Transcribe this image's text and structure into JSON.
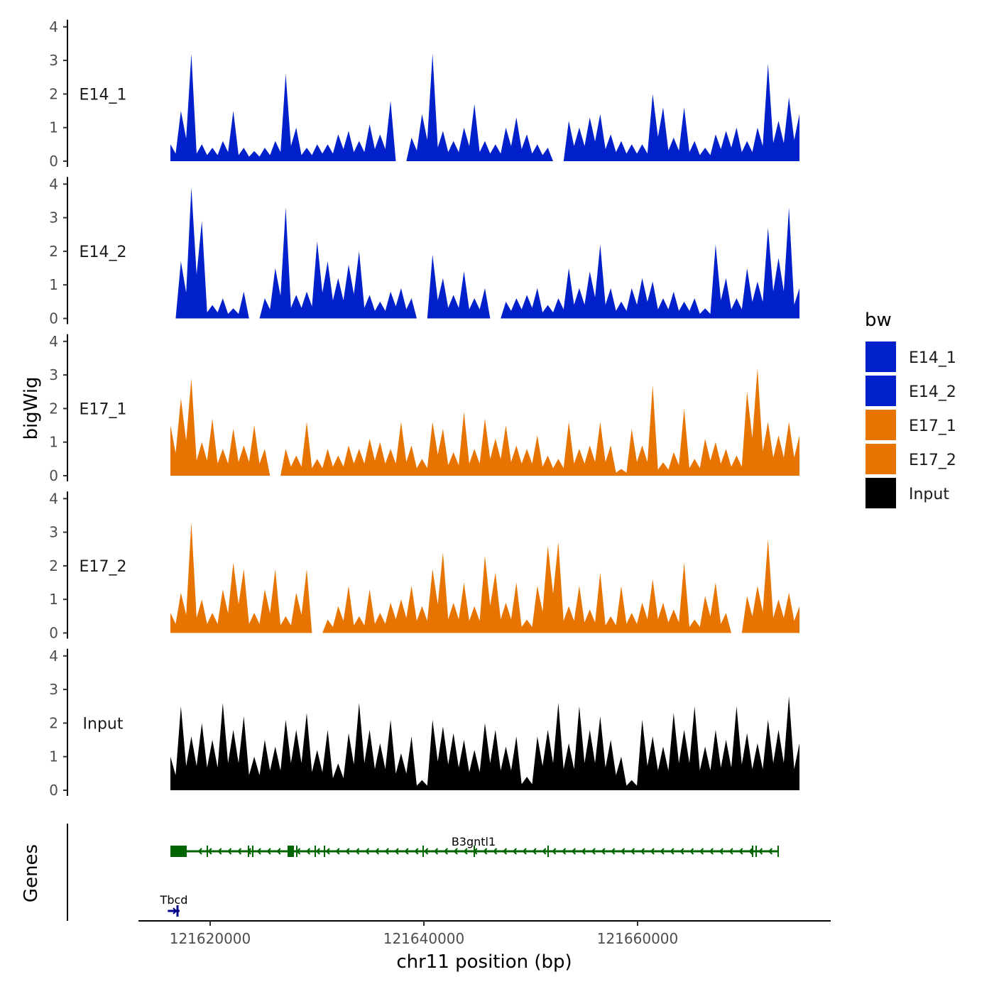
{
  "chart_data": {
    "type": "area",
    "ylabel": "bigWig",
    "xlabel": "chr11 position (bp)",
    "genes_label": "Genes",
    "y_ticks": [
      0,
      1,
      2,
      3,
      4
    ],
    "ylim": [
      0,
      4
    ],
    "xlim": [
      121612000,
      121677000
    ],
    "x_ticks": [
      121620000,
      121640000,
      121660000
    ],
    "x_tick_labels": [
      "121620000",
      "121640000",
      "121660000"
    ],
    "x_start": 121616280,
    "x_end": 121675150,
    "legend": {
      "title": "bw",
      "position": "right",
      "entries": [
        {
          "name": "E14_1",
          "color": "#0020CC"
        },
        {
          "name": "E14_2",
          "color": "#0020CC"
        },
        {
          "name": "E17_1",
          "color": "#E87400"
        },
        {
          "name": "E17_2",
          "color": "#E87400"
        },
        {
          "name": "Input",
          "color": "#000000"
        }
      ]
    },
    "series": [
      {
        "name": "E14_1",
        "color": "#0020CC",
        "values": [
          0.5,
          1.5,
          3.2,
          0.5,
          0.4,
          0.6,
          1.5,
          0.4,
          0.3,
          0.4,
          0.6,
          2.6,
          1.0,
          0.4,
          0.5,
          0.5,
          0.8,
          0.9,
          0.6,
          1.1,
          0.8,
          1.8,
          0,
          0.7,
          1.4,
          3.2,
          0.9,
          0.6,
          1.0,
          1.7,
          0.6,
          0.5,
          1.0,
          1.3,
          0.8,
          0.5,
          0.4,
          0,
          1.2,
          1.0,
          1.3,
          1.4,
          0.8,
          0.6,
          0.5,
          0.5,
          2.0,
          1.6,
          0.7,
          1.6,
          0.6,
          0.4,
          0.8,
          0.9,
          1.0,
          0.6,
          1.0,
          2.9,
          1.2,
          1.9,
          1.4
        ]
      },
      {
        "name": "E14_2",
        "color": "#0020CC",
        "values": [
          0,
          1.7,
          3.9,
          2.9,
          0.4,
          0.6,
          0.3,
          0.8,
          0,
          0.6,
          1.5,
          3.3,
          0.7,
          0.8,
          2.3,
          1.7,
          1.2,
          1.6,
          2.0,
          0.7,
          0.5,
          0.8,
          0.9,
          0.6,
          0,
          1.9,
          1.2,
          0.7,
          1.4,
          0.6,
          0.9,
          0,
          0.5,
          0.6,
          0.7,
          0.9,
          0.4,
          0.6,
          1.5,
          0.9,
          1.4,
          2.2,
          0.9,
          0.5,
          0.9,
          1.2,
          1.1,
          0.6,
          0.8,
          0.5,
          0.6,
          0.3,
          2.2,
          1.2,
          0.6,
          1.5,
          1.1,
          2.7,
          1.8,
          3.3,
          0.9
        ]
      },
      {
        "name": "E17_1",
        "color": "#E87400",
        "values": [
          1.5,
          2.3,
          2.9,
          1.0,
          1.7,
          0.8,
          1.4,
          0.9,
          1.5,
          0.8,
          0,
          0.8,
          0.6,
          1.6,
          0.5,
          0.8,
          0.6,
          0.9,
          0.8,
          1.1,
          1.0,
          0.8,
          1.6,
          0.9,
          0.5,
          1.6,
          1.4,
          0.7,
          1.9,
          0.8,
          1.7,
          1.1,
          1.5,
          0.9,
          0.8,
          1.2,
          0.6,
          0.5,
          1.6,
          0.8,
          0.9,
          1.6,
          0.9,
          0.2,
          1.4,
          0.9,
          2.7,
          0.4,
          0.7,
          2.0,
          0.5,
          1.1,
          1.0,
          0.8,
          0.6,
          2.5,
          3.2,
          1.6,
          1.2,
          1.6,
          1.2
        ]
      },
      {
        "name": "E17_2",
        "color": "#E87400",
        "values": [
          0.6,
          1.2,
          3.3,
          1.0,
          0.6,
          1.3,
          2.1,
          1.9,
          0.6,
          1.3,
          1.9,
          0.5,
          1.2,
          1.9,
          0,
          0.4,
          0.8,
          1.4,
          0.5,
          1.3,
          0.6,
          0.9,
          1.0,
          1.4,
          0.8,
          1.9,
          2.4,
          0.9,
          1.5,
          0.8,
          2.3,
          1.8,
          0.9,
          1.5,
          0.4,
          1.4,
          2.6,
          2.7,
          0.8,
          1.4,
          0.7,
          1.8,
          0.5,
          1.4,
          0.6,
          0.9,
          1.6,
          0.9,
          0.7,
          2.1,
          0.4,
          1.1,
          1.5,
          0.6,
          0,
          1.1,
          1.4,
          2.8,
          1.0,
          1.2,
          0.8
        ]
      },
      {
        "name": "Input",
        "color": "#000000",
        "values": [
          1.0,
          2.5,
          1.6,
          2.0,
          1.5,
          2.6,
          1.8,
          2.2,
          1.0,
          1.5,
          1.3,
          2.1,
          1.8,
          2.3,
          1.2,
          1.8,
          0.8,
          1.7,
          2.6,
          1.8,
          1.4,
          2.1,
          1.1,
          1.6,
          0.3,
          2.1,
          1.9,
          1.7,
          1.5,
          1.2,
          2.0,
          1.8,
          1.3,
          1.6,
          0.4,
          1.6,
          1.8,
          2.6,
          1.4,
          2.5,
          1.8,
          2.2,
          1.5,
          1.0,
          0.3,
          2.1,
          1.6,
          1.3,
          2.3,
          1.8,
          2.5,
          1.3,
          1.8,
          1.5,
          2.5,
          1.7,
          1.4,
          2.1,
          1.8,
          2.8,
          1.4
        ]
      }
    ],
    "genes": [
      {
        "name": "B3gntl1",
        "start": 121616280,
        "end": 121673160,
        "strand": "-",
        "color": "#006400"
      },
      {
        "name": "Tbcd",
        "start": 121616500,
        "end": 121617000,
        "strand": "+",
        "color": "#00008B"
      }
    ]
  }
}
